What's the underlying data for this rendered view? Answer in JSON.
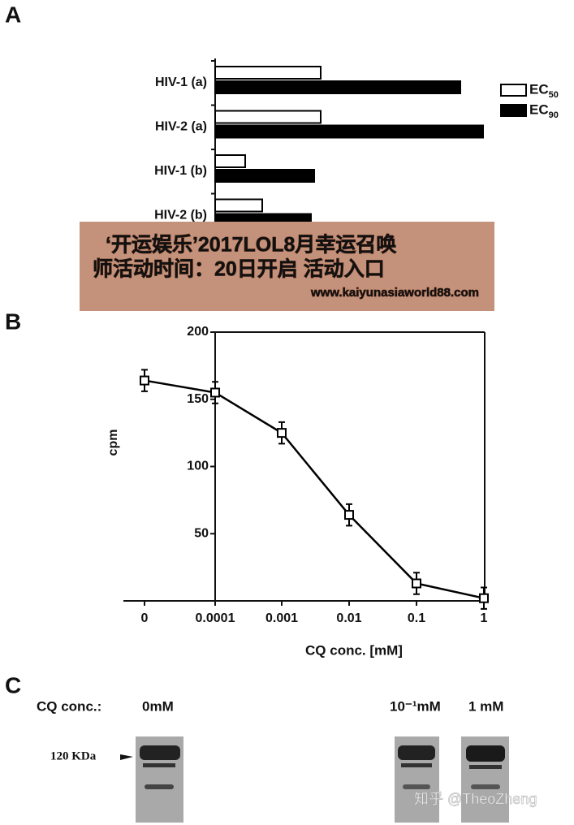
{
  "panel_labels": [
    "A",
    "B",
    "C"
  ],
  "chart_data": [
    {
      "type": "hbar",
      "categories": [
        "HIV-1 (a)",
        "HIV-2 (a)",
        "HIV-1 (b)",
        "HIV-2 (b)"
      ],
      "series": [
        {
          "name": "EC50",
          "color": "#ffffff",
          "values": [
            130,
            130,
            37,
            58
          ]
        },
        {
          "name": "EC90",
          "color": "#000000",
          "values": [
            302,
            330,
            122,
            118
          ]
        }
      ],
      "xlim": [
        0,
        350
      ],
      "legend": "right"
    },
    {
      "type": "line",
      "x": [
        "0",
        "0.0001",
        "0.001",
        "0.01",
        "0.1",
        "1"
      ],
      "values": [
        164,
        155,
        125,
        64,
        13,
        2
      ],
      "errors": [
        8,
        8,
        8,
        8,
        8,
        8
      ],
      "ylim": [
        0,
        200
      ],
      "yticks": [
        50,
        100,
        150,
        200
      ],
      "ylabel": "cpm",
      "xlabel": "CQ conc. [mM]",
      "color": "#000000"
    }
  ],
  "panel_c": {
    "row_label": "CQ conc.:",
    "lanes": [
      "0mM",
      "10⁻¹mM",
      "1 mM"
    ],
    "marker": "120 KDa"
  },
  "overlay": {
    "lines": [
      "‘开运娱乐’2017LOL8月幸运召唤",
      "师活动时间：20日开启  活动入口"
    ],
    "url": "www.kaiyunasiaworld88.com"
  },
  "watermark": "知乎 @TheoZheng"
}
